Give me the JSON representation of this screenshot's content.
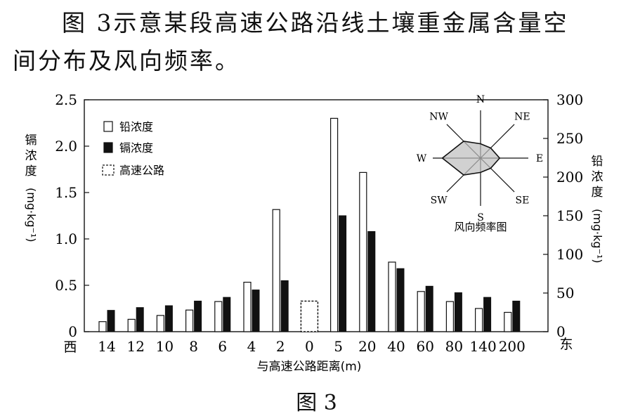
{
  "intro": {
    "line1": "图 3示意某段高速公路沿线土壤重金属含量空",
    "line2": "间分布及风向频率。"
  },
  "caption": "图 3",
  "chart_data": {
    "type": "bar",
    "xlabel": "与高速公路距离(m)",
    "categories": [
      "14",
      "12",
      "10",
      "8",
      "6",
      "4",
      "2",
      "0",
      "5",
      "20",
      "40",
      "60",
      "80",
      "140",
      "200"
    ],
    "west_label": "西",
    "east_label": "东",
    "left_axis": {
      "label": "镉浓度 (mg·kg⁻¹)",
      "ylim": [
        0,
        2.5
      ],
      "ticks": [
        "0",
        "0.5",
        "1.0",
        "1.5",
        "2.0",
        "2.5"
      ]
    },
    "right_axis": {
      "label": "铅浓度 (mg·kg⁻¹)",
      "ylim": [
        0,
        300
      ],
      "ticks": [
        "0",
        "50",
        "100",
        "150",
        "200",
        "250",
        "300"
      ]
    },
    "series": [
      {
        "name": "铅浓度",
        "axis": "right",
        "style": "hollow",
        "values": [
          13,
          16,
          21,
          28,
          39,
          64,
          158,
          null,
          276,
          206,
          90,
          52,
          39,
          30,
          25
        ]
      },
      {
        "name": "镉浓度",
        "axis": "left",
        "style": "solid",
        "values": [
          0.23,
          0.26,
          0.28,
          0.33,
          0.37,
          0.45,
          0.55,
          null,
          1.25,
          1.08,
          0.68,
          0.49,
          0.42,
          0.37,
          0.33
        ]
      },
      {
        "name": "高速公路",
        "axis": "left",
        "style": "dashed",
        "values": [
          null,
          null,
          null,
          null,
          null,
          null,
          null,
          0.33,
          null,
          null,
          null,
          null,
          null,
          null,
          null
        ]
      }
    ],
    "wind_rose": {
      "title": "风向频率图",
      "directions": [
        {
          "label": "N",
          "freq": 0.3
        },
        {
          "label": "NE",
          "freq": 0.3
        },
        {
          "label": "E",
          "freq": 0.4
        },
        {
          "label": "SE",
          "freq": 0.3
        },
        {
          "label": "S",
          "freq": 0.3
        },
        {
          "label": "SW",
          "freq": 0.5
        },
        {
          "label": "W",
          "freq": 0.8
        },
        {
          "label": "NW",
          "freq": 0.5
        }
      ]
    }
  }
}
